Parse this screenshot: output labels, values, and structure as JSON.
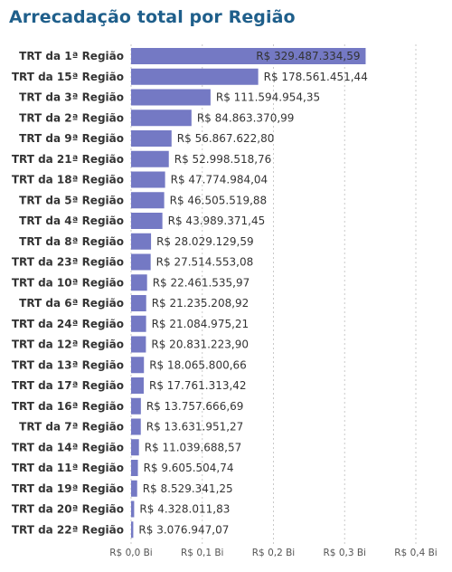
{
  "chart_data": {
    "type": "bar",
    "orientation": "horizontal",
    "title": "Arrecadação total por Região",
    "categories": [
      "TRT da 1ª Região",
      "TRT da 15ª Região",
      "TRT da 3ª Região",
      "TRT da 2ª Região",
      "TRT da 9ª Região",
      "TRT da 21ª Região",
      "TRT da 18ª Região",
      "TRT da 5ª Região",
      "TRT da 4ª Região",
      "TRT da 8ª Região",
      "TRT da 23ª Região",
      "TRT da 10ª Região",
      "TRT da 6ª Região",
      "TRT da 24ª Região",
      "TRT da 12ª Região",
      "TRT da 13ª Região",
      "TRT da 17ª Região",
      "TRT da 16ª Região",
      "TRT da 7ª Região",
      "TRT da 14ª Região",
      "TRT da 11ª Região",
      "TRT da 19ª Região",
      "TRT da 20ª Região",
      "TRT da 22ª Região"
    ],
    "values": [
      329487334.59,
      178561451.44,
      111594954.35,
      84863370.99,
      56867622.8,
      52998518.76,
      47774984.04,
      46505519.88,
      43989371.45,
      28029129.59,
      27514553.08,
      22461535.97,
      21235208.92,
      21084975.21,
      20831223.9,
      18065800.66,
      17761313.42,
      13757666.69,
      13631951.27,
      11039688.57,
      9605504.74,
      8529341.25,
      4328011.83,
      3076947.07
    ],
    "value_labels": [
      "R$ 329.487.334,59",
      "R$ 178.561.451,44",
      "R$ 111.594.954,35",
      "R$ 84.863.370,99",
      "R$ 56.867.622,80",
      "R$ 52.998.518,76",
      "R$ 47.774.984,04",
      "R$ 46.505.519,88",
      "R$ 43.989.371,45",
      "R$ 28.029.129,59",
      "R$ 27.514.553,08",
      "R$ 22.461.535,97",
      "R$ 21.235.208,92",
      "R$ 21.084.975,21",
      "R$ 20.831.223,90",
      "R$ 18.065.800,66",
      "R$ 17.761.313,42",
      "R$ 13.757.666,69",
      "R$ 13.631.951,27",
      "R$ 11.039.688,57",
      "R$ 9.605.504,74",
      "R$ 8.529.341,25",
      "R$ 4.328.011,83",
      "R$ 3.076.947,07"
    ],
    "xlim": [
      0,
      400000000
    ],
    "x_ticks": [
      0,
      100000000,
      200000000,
      300000000,
      400000000
    ],
    "x_tick_labels": [
      "R$ 0,0 Bi",
      "R$ 0,1 Bi",
      "R$ 0,2 Bi",
      "R$ 0,3 Bi",
      "R$ 0,4 Bi"
    ],
    "grid": true,
    "bar_color": "#7479c4",
    "title_color": "#1f5f8b"
  }
}
